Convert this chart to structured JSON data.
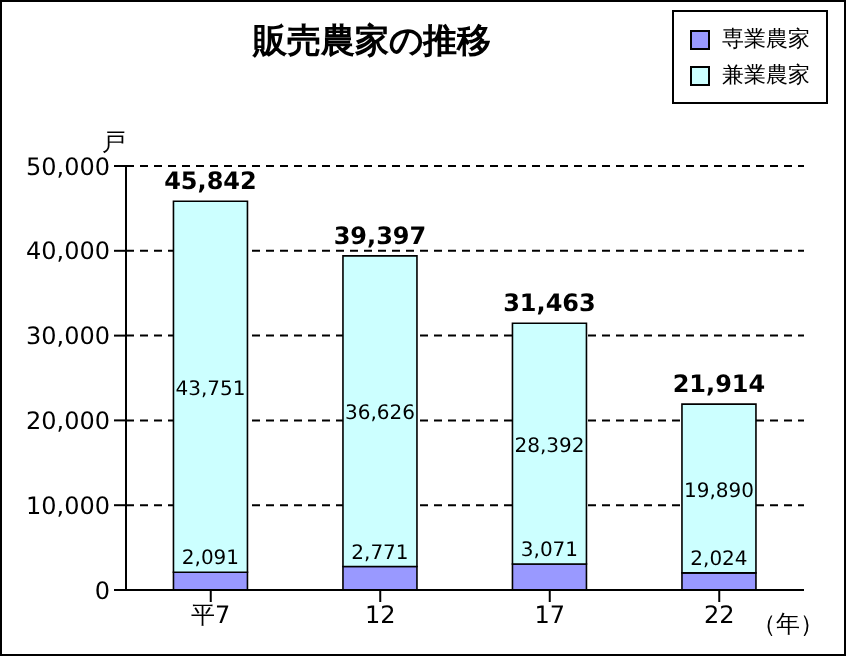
{
  "chart_data": {
    "type": "bar",
    "title": "販売農家の推移",
    "xlabel": "（年）",
    "ylabel": "戸",
    "categories": [
      "平7",
      "12",
      "17",
      "22"
    ],
    "stacked": true,
    "series": [
      {
        "name": "専業農家",
        "color": "#9999ff",
        "values": [
          2091,
          2771,
          3071,
          2024
        ],
        "value_labels": [
          "2,091",
          "2,771",
          "3,071",
          "2,024"
        ]
      },
      {
        "name": "兼業農家",
        "color": "#ccffff",
        "values": [
          43751,
          36626,
          28392,
          19890
        ],
        "value_labels": [
          "43,751",
          "36,626",
          "28,392",
          "19,890"
        ]
      }
    ],
    "totals": [
      "45,842",
      "39,397",
      "31,463",
      "21,914"
    ],
    "ylim": [
      0,
      50000
    ],
    "yticks": [
      {
        "value": 0,
        "label": "0"
      },
      {
        "value": 10000,
        "label": "10,000"
      },
      {
        "value": 20000,
        "label": "20,000"
      },
      {
        "value": 30000,
        "label": "30,000"
      },
      {
        "value": 40000,
        "label": "40,000"
      },
      {
        "value": 50000,
        "label": "50,000"
      }
    ],
    "grid": "y",
    "legend": "top right"
  }
}
